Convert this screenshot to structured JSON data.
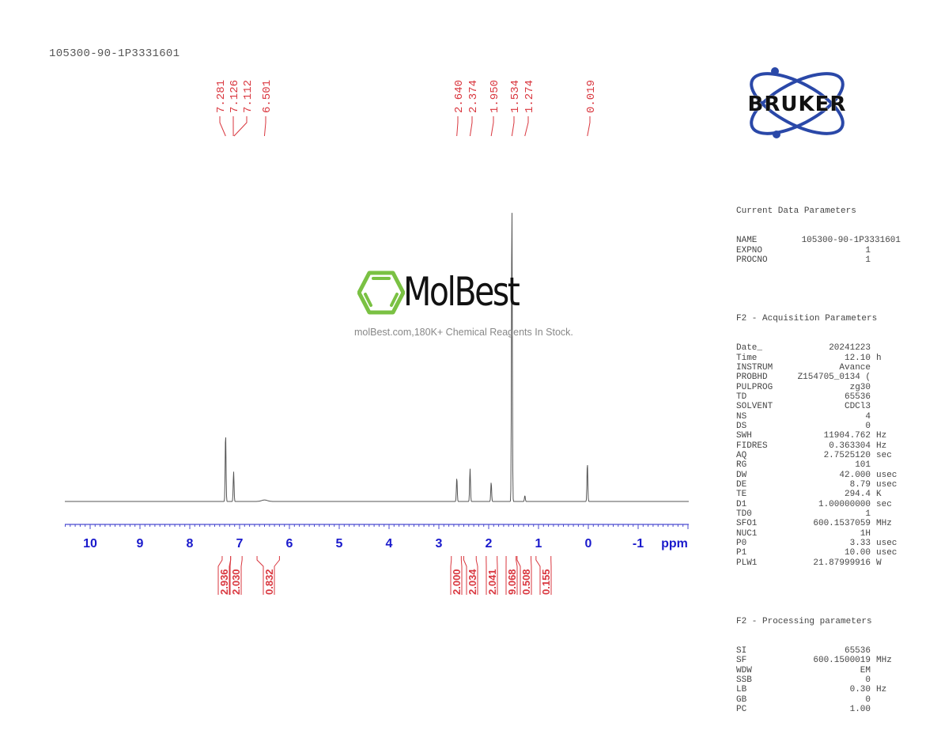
{
  "sample_title": "105300-90-1P3331601",
  "watermark": {
    "brand": "MolBest",
    "tagline": "molBest.com,180K+ Chemical Reagents In Stock.",
    "accent_color": "#7ac143"
  },
  "logo": {
    "text": "BRUKER",
    "color": "#2a48a8"
  },
  "parameters": {
    "current": {
      "heading": "Current Data Parameters",
      "rows": [
        {
          "key": "NAME",
          "value": "105300-90-1P3331601",
          "unit": ""
        },
        {
          "key": "EXPNO",
          "value": "1",
          "unit": ""
        },
        {
          "key": "PROCNO",
          "value": "1",
          "unit": ""
        }
      ]
    },
    "acquisition": {
      "heading": "F2 - Acquisition Parameters",
      "rows": [
        {
          "key": "Date_",
          "value": "20241223",
          "unit": ""
        },
        {
          "key": "Time",
          "value": "12.10",
          "unit": "h"
        },
        {
          "key": "INSTRUM",
          "value": "Avance",
          "unit": ""
        },
        {
          "key": "PROBHD",
          "value": "Z154705_0134 (",
          "unit": ""
        },
        {
          "key": "PULPROG",
          "value": "zg30",
          "unit": ""
        },
        {
          "key": "TD",
          "value": "65536",
          "unit": ""
        },
        {
          "key": "SOLVENT",
          "value": "CDCl3",
          "unit": ""
        },
        {
          "key": "NS",
          "value": "4",
          "unit": ""
        },
        {
          "key": "DS",
          "value": "0",
          "unit": ""
        },
        {
          "key": "SWH",
          "value": "11904.762",
          "unit": "Hz"
        },
        {
          "key": "FIDRES",
          "value": "0.363304",
          "unit": "Hz"
        },
        {
          "key": "AQ",
          "value": "2.7525120",
          "unit": "sec"
        },
        {
          "key": "RG",
          "value": "101",
          "unit": ""
        },
        {
          "key": "DW",
          "value": "42.000",
          "unit": "usec"
        },
        {
          "key": "DE",
          "value": "8.79",
          "unit": "usec"
        },
        {
          "key": "TE",
          "value": "294.4",
          "unit": "K"
        },
        {
          "key": "D1",
          "value": "1.00000000",
          "unit": "sec"
        },
        {
          "key": "TD0",
          "value": "1",
          "unit": ""
        },
        {
          "key": "SFO1",
          "value": "600.1537059",
          "unit": "MHz"
        },
        {
          "key": "NUC1",
          "value": "1H",
          "unit": ""
        },
        {
          "key": "P0",
          "value": "3.33",
          "unit": "usec"
        },
        {
          "key": "P1",
          "value": "10.00",
          "unit": "usec"
        },
        {
          "key": "PLW1",
          "value": "21.87999916",
          "unit": "W"
        }
      ]
    },
    "processing": {
      "heading": "F2 - Processing parameters",
      "rows": [
        {
          "key": "SI",
          "value": "65536",
          "unit": ""
        },
        {
          "key": "SF",
          "value": "600.1500019",
          "unit": "MHz"
        },
        {
          "key": "WDW",
          "value": "EM",
          "unit": ""
        },
        {
          "key": "SSB",
          "value": "0",
          "unit": ""
        },
        {
          "key": "LB",
          "value": "0.30",
          "unit": "Hz"
        },
        {
          "key": "GB",
          "value": "0",
          "unit": ""
        },
        {
          "key": "PC",
          "value": "1.00",
          "unit": ""
        }
      ]
    }
  },
  "colors": {
    "peak_label": "#d9363e",
    "axis": "#1a1acc",
    "spectrum": "#555555",
    "integral": "#d9363e"
  },
  "chart_data": {
    "type": "line",
    "title": "105300-90-1P3331601",
    "xlabel": "ppm",
    "ylabel": "",
    "xlim": [
      10.5,
      -2.0
    ],
    "x_reversed": true,
    "x_ticks": [
      10,
      9,
      8,
      7,
      6,
      5,
      4,
      3,
      2,
      1,
      0,
      -1
    ],
    "x_tick_labels": [
      "10",
      "9",
      "8",
      "7",
      "6",
      "5",
      "4",
      "3",
      "2",
      "1",
      "0",
      "-1"
    ],
    "grid": false,
    "peak_labels": [
      7.281,
      7.126,
      7.112,
      6.501,
      2.64,
      2.374,
      1.95,
      1.534,
      1.274,
      0.019
    ],
    "peaks": [
      {
        "ppm": 7.281,
        "height": 0.23
      },
      {
        "ppm": 7.12,
        "height": 0.1
      },
      {
        "ppm": 6.5,
        "height": 0.005
      },
      {
        "ppm": 2.64,
        "height": 0.08
      },
      {
        "ppm": 2.374,
        "height": 0.11
      },
      {
        "ppm": 1.95,
        "height": 0.065
      },
      {
        "ppm": 1.534,
        "height": 1.0
      },
      {
        "ppm": 1.274,
        "height": 0.02
      },
      {
        "ppm": 0.019,
        "height": 0.13
      }
    ],
    "integrals": [
      {
        "from": 7.35,
        "to": 7.18,
        "center": 7.28,
        "value": "2.936"
      },
      {
        "from": 7.18,
        "to": 6.95,
        "center": 7.06,
        "value": "2.030"
      },
      {
        "from": 6.65,
        "to": 6.2,
        "center": 6.5,
        "value": "0.832"
      },
      {
        "from": 2.75,
        "to": 2.55,
        "center": 2.64,
        "value": "2.000"
      },
      {
        "from": 2.5,
        "to": 2.25,
        "center": 2.37,
        "value": "2.034"
      },
      {
        "from": 2.05,
        "to": 1.83,
        "center": 1.95,
        "value": "2.041"
      },
      {
        "from": 1.65,
        "to": 1.45,
        "center": 1.53,
        "value": "9.068"
      },
      {
        "from": 1.43,
        "to": 1.15,
        "center": 1.27,
        "value": "0.508"
      },
      {
        "from": 1.05,
        "to": 0.75,
        "center": 0.92,
        "value": "0.155"
      }
    ]
  }
}
